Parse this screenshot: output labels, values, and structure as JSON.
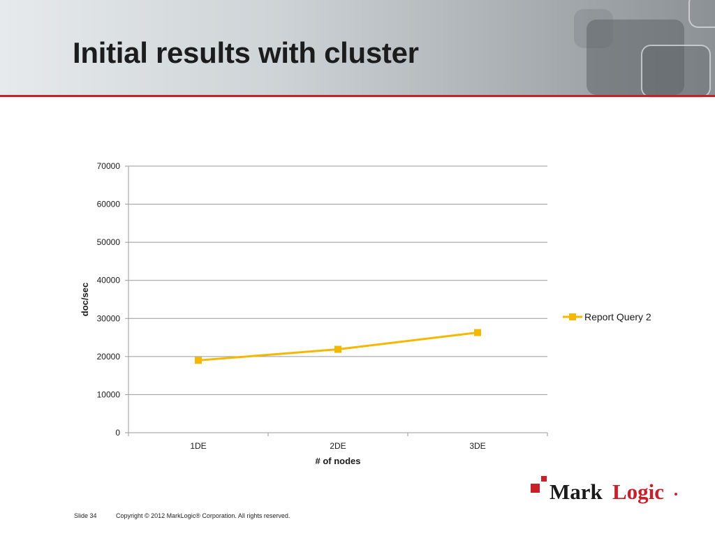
{
  "slide": {
    "title": "Initial results with cluster",
    "footer_slide": "Slide 34",
    "footer_copyright": "Copyright © 2012 MarkLogic® Corporation. All rights reserved.",
    "logo_text_mark": "Mark",
    "logo_text_logic": "Logic",
    "colors": {
      "accent_red": "#c8202a",
      "series_color": "#f5b800",
      "logo_black": "#1a1a1a"
    }
  },
  "chart_data": {
    "type": "line",
    "title": "",
    "xlabel": "# of nodes",
    "ylabel": "doc/sec",
    "categories": [
      "1DE",
      "2DE",
      "3DE"
    ],
    "series": [
      {
        "name": "Report Query 2",
        "values": [
          19000,
          21900,
          26300
        ]
      }
    ],
    "ylim": [
      0,
      70000
    ],
    "yticks": [
      0,
      10000,
      20000,
      30000,
      40000,
      50000,
      60000,
      70000
    ],
    "grid": true,
    "legend": "right",
    "marker": "square"
  }
}
